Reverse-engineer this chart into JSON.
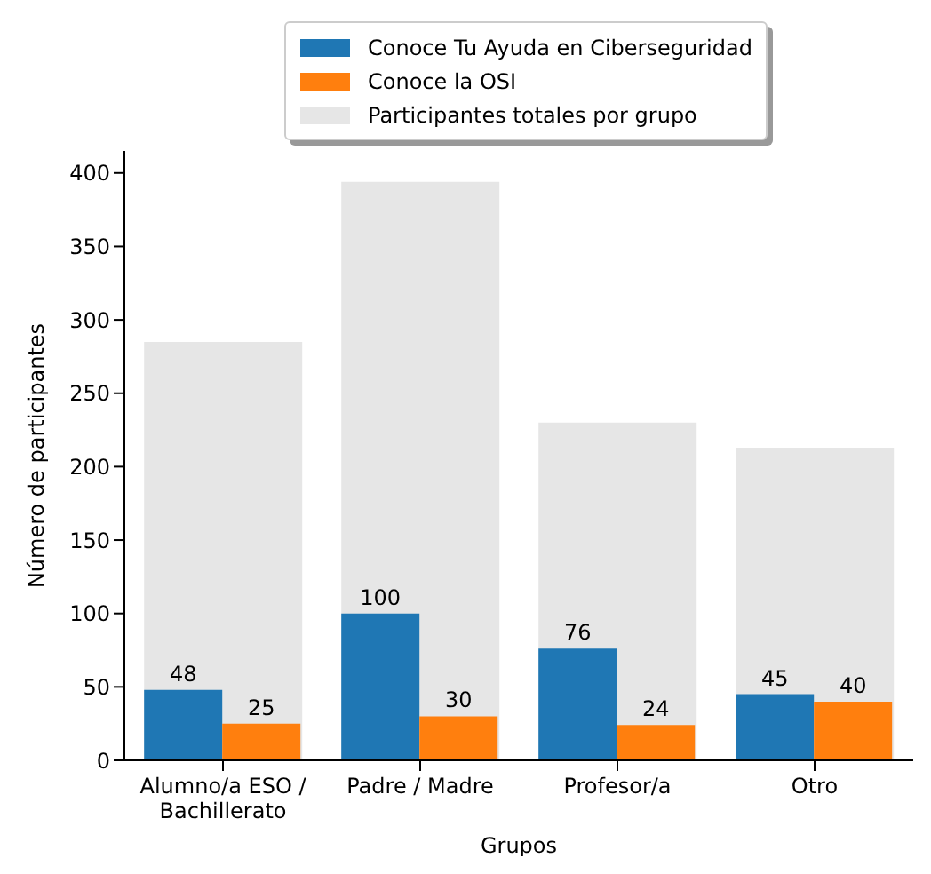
{
  "chart_data": {
    "type": "bar",
    "xlabel": "Grupos",
    "ylabel": "Número de participantes",
    "categories": [
      "Alumno/a ESO / Bachillerato",
      "Padre / Madre",
      "Profesor/a",
      "Otro"
    ],
    "series": [
      {
        "name": "Conoce Tu Ayuda en Ciberseguridad",
        "color": "#1f77b4",
        "values": [
          48,
          100,
          76,
          45
        ],
        "value_labels": [
          "48",
          "100",
          "76",
          "45"
        ]
      },
      {
        "name": "Conoce la OSI",
        "color": "#ff7f0e",
        "values": [
          25,
          30,
          24,
          40
        ],
        "value_labels": [
          "25",
          "30",
          "24",
          "40"
        ]
      },
      {
        "name": "Participantes totales por grupo",
        "color": "#e6e6e6",
        "values": [
          285,
          394,
          230,
          213
        ]
      }
    ],
    "ylim": [
      0,
      415
    ],
    "yticks": [
      0,
      50,
      100,
      150,
      200,
      250,
      300,
      350,
      400
    ],
    "legend": "top"
  }
}
